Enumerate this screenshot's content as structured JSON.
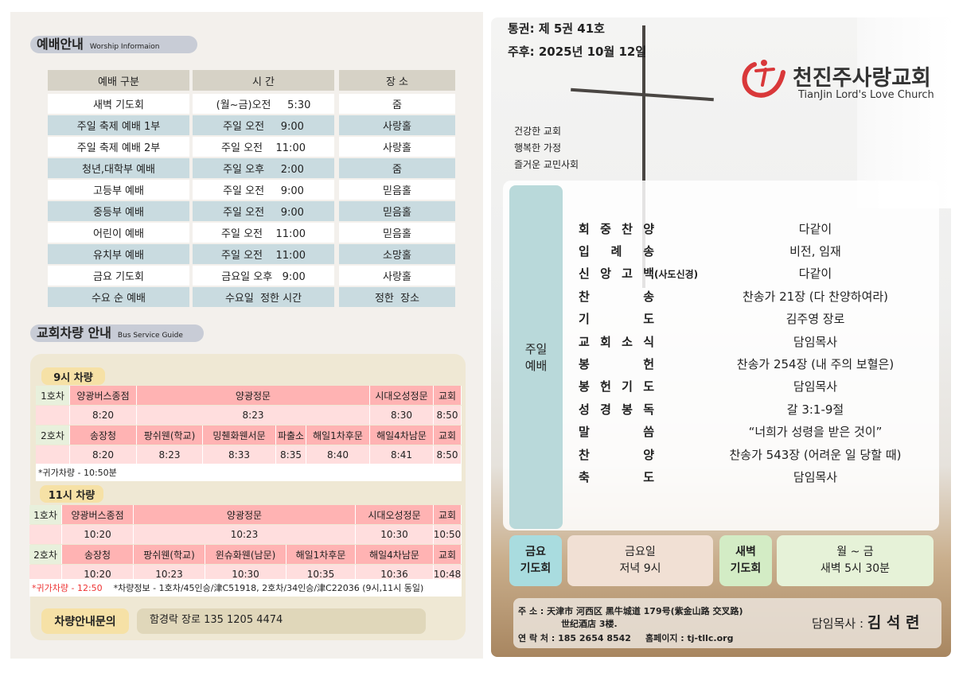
{
  "worship": {
    "title": "예배안내",
    "subtitle": "Worship Informaion",
    "headers": [
      "예배 구분",
      "시  간",
      "장  소"
    ],
    "rows": [
      [
        "새벽 기도회",
        "(월~금)오전     5:30",
        "줌"
      ],
      [
        "주일 축제 예배 1부",
        "주일 오전     9:00",
        "사랑홀"
      ],
      [
        "주일 축제 예배 2부",
        "주일 오전    11:00",
        "사랑홀"
      ],
      [
        "청년,대학부 예배",
        "주일 오후     2:00",
        "줌"
      ],
      [
        "고등부 예배",
        "주일 오전     9:00",
        "믿음홀"
      ],
      [
        "중등부 예배",
        "주일 오전     9:00",
        "믿음홀"
      ],
      [
        "어린이 예배",
        "주일 오전    11:00",
        "믿음홀"
      ],
      [
        "유치부 예배",
        "주일 오전    11:00",
        "소망홀"
      ],
      [
        "금요 기도회",
        "금요일 오후   9:00",
        "사랑홀"
      ],
      [
        "수요 순 예배",
        "수요일  정한 시간",
        "정한  장소"
      ]
    ]
  },
  "bus": {
    "title": "교회차량 안내",
    "subtitle": "Bus Service Guide",
    "nine": {
      "label": "9시 차량",
      "car1": {
        "name": "1호차",
        "stops": [
          "양광버스종점",
          "양광정문",
          "시대오성정문",
          "교회"
        ],
        "times": [
          "8:20",
          "8:23",
          "8:30",
          "8:50"
        ]
      },
      "car2": {
        "name": "2호차",
        "stops": [
          "송장청",
          "팡쉬웬(학교)",
          "밍췐화웬서문",
          "파출소",
          "해일1차후문",
          "해일4차남문",
          "교회"
        ],
        "times": [
          "8:20",
          "8:23",
          "8:33",
          "8:35",
          "8:40",
          "8:41",
          "8:50"
        ]
      },
      "note": "*귀가차량 - 10:50분"
    },
    "eleven": {
      "label": "11시 차량",
      "car1": {
        "name": "1호차",
        "stops": [
          "양광버스종점",
          "양광정문",
          "시대오성정문",
          "교회"
        ],
        "times": [
          "10:20",
          "10:23",
          "10:30",
          "10:50"
        ]
      },
      "car2": {
        "name": "2호차",
        "stops": [
          "송장청",
          "팡쉬웬(학교)",
          "윈슈화웬(남문)",
          "해일1차후문",
          "해일4차남문",
          "교회"
        ],
        "times": [
          "10:20",
          "10:23",
          "10:30",
          "10:35",
          "10:36",
          "10:48"
        ]
      },
      "note_red": "*귀가차량 - 12:50",
      "note": "*차량정보 - 1호차/45인승/津C51918, 2호차/34인승/津C22036 (9시,11시 동일)"
    },
    "contact_label": "차량안내문의",
    "contact": "함경락 장로 135 1205 4474"
  },
  "header": {
    "volume": "통권: 제 5권 41호",
    "date": "주후: 2025년 10월 12일",
    "church_name": "천진주사랑교회",
    "church_name_en": "TianJin Lord's Love Church",
    "mottos": [
      "건강한 교회",
      "행복한 가정",
      "즐거운 교민사회"
    ]
  },
  "service": {
    "label": "주일 예배",
    "items": [
      {
        "k": [
          "회",
          "중",
          "찬",
          "양"
        ],
        "v": "다같이"
      },
      {
        "k": [
          "입",
          "례",
          "송"
        ],
        "v": "비전, 임재"
      },
      {
        "k": [
          "신",
          "앙",
          "고",
          "백"
        ],
        "note": "(사도신경)",
        "v": "다같이"
      },
      {
        "k": [
          "찬",
          "송"
        ],
        "v": "찬송가 21장 (다 찬양하여라)"
      },
      {
        "k": [
          "기",
          "도"
        ],
        "v": "김주영 장로"
      },
      {
        "k": [
          "교",
          "회",
          "소",
          "식"
        ],
        "v": "담임목사"
      },
      {
        "k": [
          "봉",
          "헌"
        ],
        "v": "찬송가 254장 (내 주의 보혈은)"
      },
      {
        "k": [
          "봉",
          "헌",
          "기",
          "도"
        ],
        "v": "담임목사"
      },
      {
        "k": [
          "성",
          "경",
          "봉",
          "독"
        ],
        "v": "갈 3:1-9절"
      },
      {
        "k": [
          "말",
          "씀"
        ],
        "v": "“너희가 성령을 받은 것이”"
      },
      {
        "k": [
          "찬",
          "양"
        ],
        "v": "찬송가 543장 (어려운 일 당할 때)"
      },
      {
        "k": [
          "축",
          "도"
        ],
        "v": "담임목사"
      }
    ]
  },
  "friday": {
    "label1": "금요",
    "label2": "기도회",
    "day": "금요일",
    "time": "저녁 9시"
  },
  "dawn": {
    "label1": "새벽",
    "label2": "기도회",
    "day": "월 ~ 금",
    "time": "새벽 5시 30분"
  },
  "footer": {
    "addr_label": "주    소 :",
    "addr1": "天津市 河西区 黑牛城道 179号(紫金山路 交叉路)",
    "addr2": "世纪酒店 3楼.",
    "phone_label": "연 락 처 :",
    "phone": "185 2654 8542",
    "home_label": "홈페이지 :",
    "home": "tj-tllc.org",
    "pastor_label": "담임목사 :",
    "pastor": "김 석 련"
  },
  "colors": {
    "accent_red": "#d9383a",
    "row_blue": "#c9dbe0",
    "bus_header": "#ffb3b3",
    "bus_time": "#ffdede",
    "teal": "#b3dcde"
  }
}
